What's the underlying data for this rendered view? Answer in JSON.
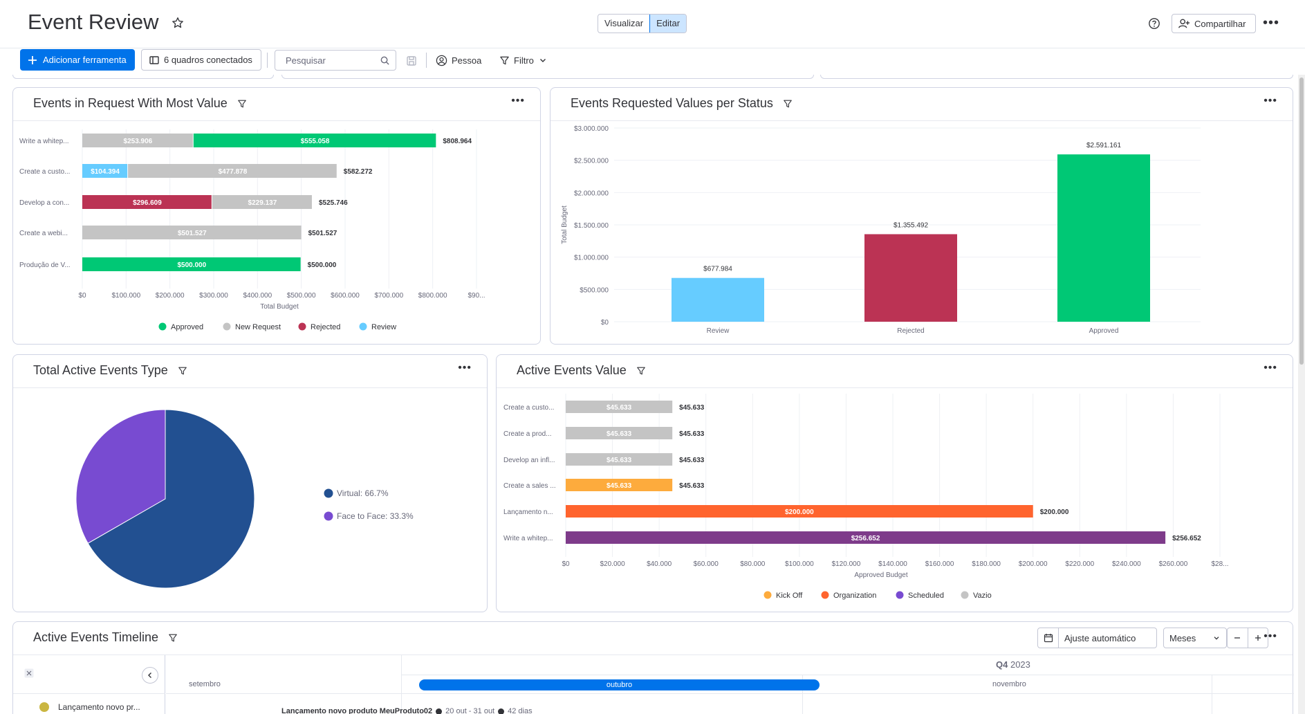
{
  "header": {
    "title": "Event Review",
    "view_toggle": {
      "view_label": "Visualizar",
      "edit_label": "Editar"
    },
    "share_label": "Compartilhar"
  },
  "toolbar": {
    "add_tool_label": "Adicionar ferramenta",
    "connected_boards_label": "6 quadros conectados",
    "search_placeholder": "Pesquisar",
    "person_label": "Pessoa",
    "filter_label": "Filtro"
  },
  "colors": {
    "approved": "#00c875",
    "new_request": "#c4c4c4",
    "rejected": "#bb3354",
    "review": "#66ccff",
    "kick_off": "#fdab3d",
    "organization": "#ff642e",
    "scheduled": "#784bd1",
    "scheduled_bar": "#7e3b8a",
    "vazio": "#c4c4c4",
    "virtual": "#225091",
    "face_to_face": "#784bd1",
    "primary": "#0073ea"
  },
  "widgets": {
    "requests": {
      "title": "Events in Request With Most Value"
    },
    "status": {
      "title": "Events Requested Values per Status"
    },
    "type": {
      "title": "Total Active Events Type"
    },
    "value": {
      "title": "Active Events Value"
    },
    "timeline": {
      "title": "Active Events Timeline",
      "autofit_label": "Ajuste automático",
      "scale_label": "Meses",
      "quarter_label": "Q4",
      "year_label": "2023",
      "months": [
        "setembro",
        "outubro",
        "novembro"
      ],
      "row_label": "Lançamento novo pr...",
      "row_detail": "Lançamento novo produto MeuProduto02",
      "row_dates": "20 out - 31 out",
      "row_days": "42 dias"
    }
  },
  "chart_data": [
    {
      "type": "bar",
      "orientation": "horizontal",
      "stacked": true,
      "title": "Events in Request With Most Value",
      "xlabel": "Total Budget",
      "categories": [
        "Write a whitep...",
        "Create a custo...",
        "Develop a con...",
        "Create a webi...",
        "Produção de V..."
      ],
      "segments": [
        [
          {
            "series": "New Request",
            "value": 253906,
            "label": "$253.906"
          },
          {
            "series": "Approved",
            "value": 555058,
            "label": "$555.058"
          }
        ],
        [
          {
            "series": "Review",
            "value": 104394,
            "label": "$104.394"
          },
          {
            "series": "New Request",
            "value": 477878,
            "label": "$477.878"
          }
        ],
        [
          {
            "series": "Rejected",
            "value": 296609,
            "label": "$296.609"
          },
          {
            "series": "New Request",
            "value": 229137,
            "label": "$229.137"
          }
        ],
        [
          {
            "series": "New Request",
            "value": 501527,
            "label": "$501.527"
          }
        ],
        [
          {
            "series": "Approved",
            "value": 500000,
            "label": "$500.000"
          }
        ]
      ],
      "totals": [
        "$808.964",
        "$582.272",
        "$525.746",
        "$501.527",
        "$500.000"
      ],
      "xticks": [
        "$0",
        "$100.000",
        "$200.000",
        "$300.000",
        "$400.000",
        "$500.000",
        "$600.000",
        "$700.000",
        "$800.000",
        "$90..."
      ],
      "xlim": [
        0,
        900000
      ],
      "legend": [
        "Approved",
        "New Request",
        "Rejected",
        "Review"
      ],
      "legend_position": "bottom"
    },
    {
      "type": "bar",
      "title": "Events Requested Values per Status",
      "ylabel": "Total Budget",
      "categories": [
        "Review",
        "Rejected",
        "Approved"
      ],
      "values": [
        677984,
        1355492,
        2591161
      ],
      "value_labels": [
        "$677.984",
        "$1.355.492",
        "$2.591.161"
      ],
      "yticks": [
        "$3.000.000",
        "$2.500.000",
        "$2.000.000",
        "$1.500.000",
        "$1.000.000",
        "$500.000",
        "$0"
      ],
      "ylim": [
        0,
        3000000
      ]
    },
    {
      "type": "pie",
      "title": "Total Active Events Type",
      "slices": [
        {
          "label": "Virtual: 66.7%",
          "value": 66.7
        },
        {
          "label": "Face to Face: 33.3%",
          "value": 33.3
        }
      ],
      "legend_position": "right"
    },
    {
      "type": "bar",
      "orientation": "horizontal",
      "title": "Active Events Value",
      "xlabel": "Approved Budget",
      "categories": [
        "Create a custo...",
        "Create a prod...",
        "Develop an infl...",
        "Create a sales ...",
        "Lançamento n...",
        "Write a whitep..."
      ],
      "series_of_bar": [
        "Vazio",
        "Vazio",
        "Vazio",
        "Kick Off",
        "Organization",
        "Scheduled"
      ],
      "values": [
        45633,
        45633,
        45633,
        45633,
        200000,
        256652
      ],
      "value_labels": [
        "$45.633",
        "$45.633",
        "$45.633",
        "$45.633",
        "$200.000",
        "$256.652"
      ],
      "xticks": [
        "$0",
        "$20.000",
        "$40.000",
        "$60.000",
        "$80.000",
        "$100.000",
        "$120.000",
        "$140.000",
        "$160.000",
        "$180.000",
        "$200.000",
        "$220.000",
        "$240.000",
        "$260.000",
        "$28..."
      ],
      "xlim": [
        0,
        280000
      ],
      "legend": [
        "Kick Off",
        "Organization",
        "Scheduled",
        "Vazio"
      ],
      "legend_position": "bottom"
    }
  ]
}
